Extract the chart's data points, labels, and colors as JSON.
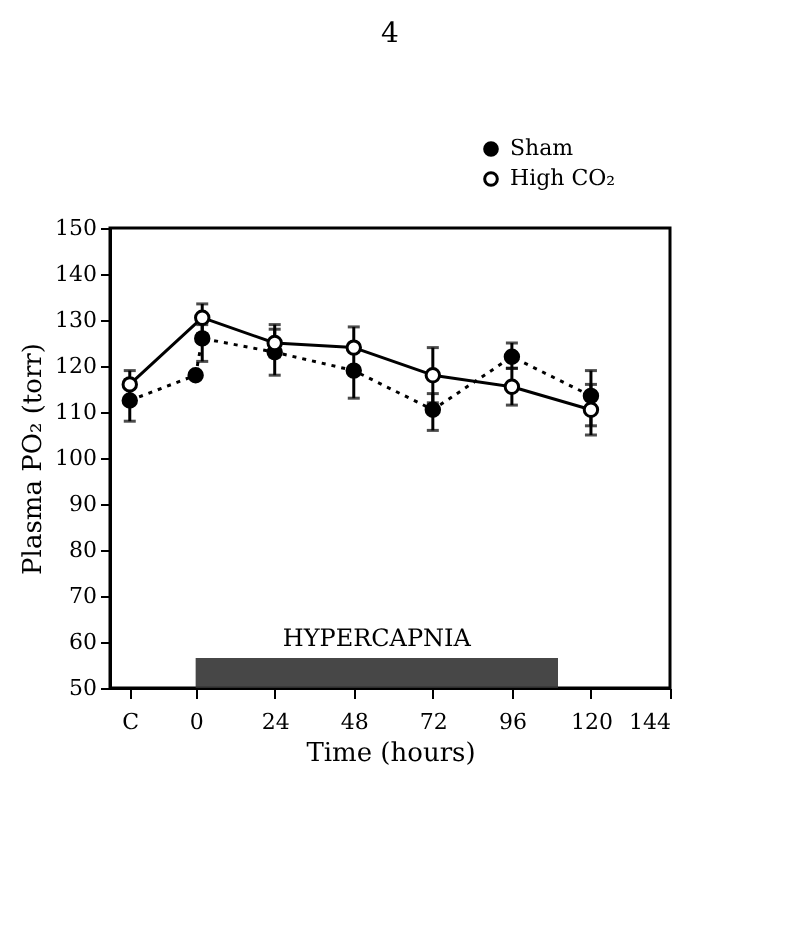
{
  "chart_data": {
    "type": "line",
    "annotations": [
      "4"
    ],
    "xlabel": "Time (hours)",
    "ylabel": "Plasma PO₂ (torr)",
    "xlim": [
      -26,
      144
    ],
    "xticks": [
      {
        "value": -20,
        "label": "C"
      },
      0,
      24,
      48,
      72,
      96,
      120,
      144
    ],
    "ylim": [
      50,
      150
    ],
    "yticks": [
      50,
      60,
      70,
      80,
      90,
      100,
      110,
      120,
      130,
      140,
      150
    ],
    "grid": false,
    "legend": "top right",
    "marker": "circle",
    "bands": [
      {
        "axis": "x",
        "from": 0,
        "to": 110,
        "label": "HYPERCAPNIA",
        "color": "#333333"
      }
    ],
    "series": [
      {
        "name": "Sham",
        "color": "#000000",
        "line_style": "dotted",
        "x": [
          -20,
          0,
          2,
          24,
          48,
          72,
          96,
          120
        ],
        "values": [
          112.5,
          118,
          126,
          123,
          119,
          110.5,
          122,
          113.5
        ],
        "errors": [
          [
            108,
            117
          ],
          null,
          [
            121,
            129
          ],
          [
            118,
            128
          ],
          [
            113,
            124
          ],
          [
            106,
            114
          ],
          [
            119.5,
            125
          ],
          [
            107,
            119
          ]
        ]
      },
      {
        "name": "High CO₂",
        "color": "#000000",
        "line_style": "solid",
        "x": [
          -20,
          2,
          24,
          48,
          72,
          96,
          120
        ],
        "values": [
          116,
          130.5,
          125,
          124,
          118,
          115.5,
          110.5
        ],
        "errors": [
          [
            112,
            119
          ],
          [
            127,
            133.5
          ],
          [
            122,
            129
          ],
          [
            124,
            128.5
          ],
          [
            112,
            124
          ],
          [
            111.5,
            119.5
          ],
          [
            105,
            116
          ]
        ]
      }
    ]
  }
}
